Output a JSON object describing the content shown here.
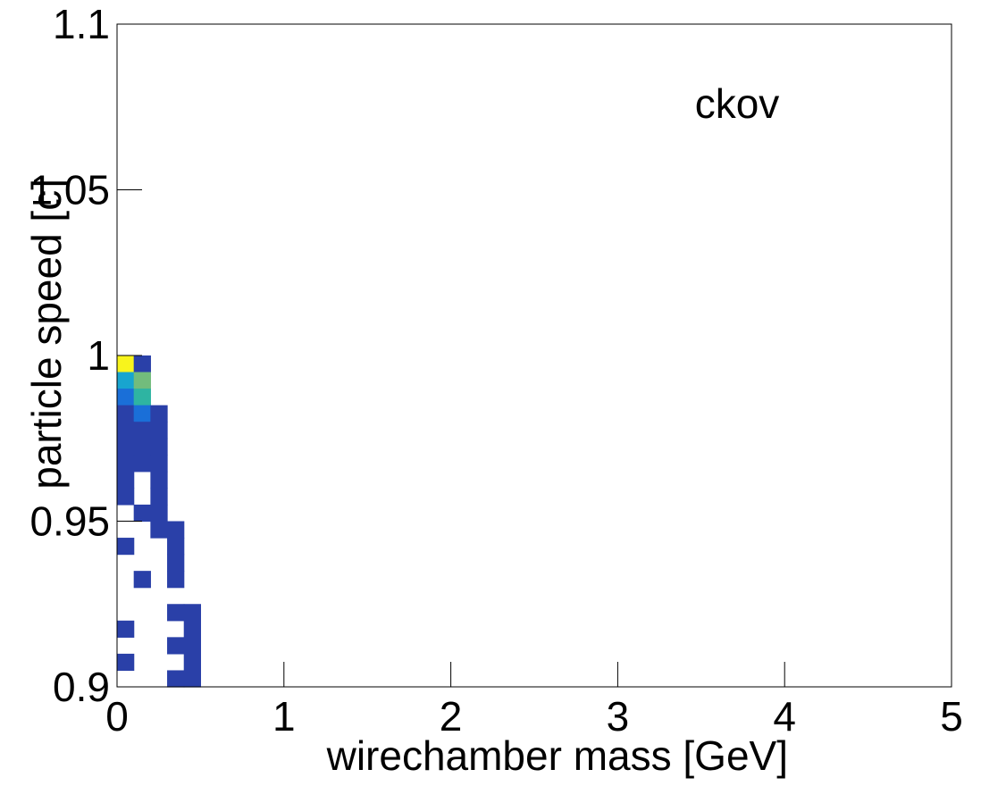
{
  "chart_data": {
    "type": "heatmap",
    "title": "ckov",
    "xlabel": "wirechamber mass [GeV]",
    "ylabel": "particle speed [c]",
    "xlim": [
      0,
      5
    ],
    "ylim": [
      0.9,
      1.1
    ],
    "x_ticks": [
      "0",
      "1",
      "2",
      "3",
      "4",
      "5"
    ],
    "y_ticks": [
      "0.9",
      "0.95",
      "1",
      "1.05",
      "1.1"
    ],
    "bin_width_x": 0.1,
    "bin_width_y": 0.005,
    "colors": {
      "low": "#2a40a8",
      "blue_mid": "#1a6fd8",
      "cyan": "#18a5cf",
      "teal": "#2eb4a2",
      "green": "#72bc7c",
      "high": "#f8f41c"
    },
    "cells": [
      {
        "x": 0.0,
        "y": 0.995,
        "level": "high"
      },
      {
        "x": 0.1,
        "y": 0.995,
        "level": "low"
      },
      {
        "x": 0.0,
        "y": 0.99,
        "level": "cyan"
      },
      {
        "x": 0.1,
        "y": 0.99,
        "level": "green"
      },
      {
        "x": 0.0,
        "y": 0.985,
        "level": "blue_mid"
      },
      {
        "x": 0.1,
        "y": 0.985,
        "level": "teal"
      },
      {
        "x": 0.0,
        "y": 0.98,
        "level": "low"
      },
      {
        "x": 0.1,
        "y": 0.98,
        "level": "blue_mid"
      },
      {
        "x": 0.2,
        "y": 0.98,
        "level": "low"
      },
      {
        "x": 0.0,
        "y": 0.975,
        "level": "low"
      },
      {
        "x": 0.1,
        "y": 0.975,
        "level": "low"
      },
      {
        "x": 0.2,
        "y": 0.975,
        "level": "low"
      },
      {
        "x": 0.0,
        "y": 0.97,
        "level": "low"
      },
      {
        "x": 0.1,
        "y": 0.97,
        "level": "low"
      },
      {
        "x": 0.2,
        "y": 0.97,
        "level": "low"
      },
      {
        "x": 0.0,
        "y": 0.965,
        "level": "low"
      },
      {
        "x": 0.1,
        "y": 0.965,
        "level": "low"
      },
      {
        "x": 0.2,
        "y": 0.965,
        "level": "low"
      },
      {
        "x": 0.0,
        "y": 0.96,
        "level": "low"
      },
      {
        "x": 0.2,
        "y": 0.96,
        "level": "low"
      },
      {
        "x": 0.0,
        "y": 0.955,
        "level": "low"
      },
      {
        "x": 0.2,
        "y": 0.955,
        "level": "low"
      },
      {
        "x": 0.1,
        "y": 0.95,
        "level": "low"
      },
      {
        "x": 0.2,
        "y": 0.95,
        "level": "low"
      },
      {
        "x": 0.2,
        "y": 0.945,
        "level": "low"
      },
      {
        "x": 0.3,
        "y": 0.945,
        "level": "low"
      },
      {
        "x": 0.0,
        "y": 0.94,
        "level": "low"
      },
      {
        "x": 0.3,
        "y": 0.94,
        "level": "low"
      },
      {
        "x": 0.3,
        "y": 0.935,
        "level": "low"
      },
      {
        "x": 0.1,
        "y": 0.93,
        "level": "low"
      },
      {
        "x": 0.3,
        "y": 0.93,
        "level": "low"
      },
      {
        "x": 0.3,
        "y": 0.92,
        "level": "low"
      },
      {
        "x": 0.4,
        "y": 0.92,
        "level": "low"
      },
      {
        "x": 0.0,
        "y": 0.915,
        "level": "low"
      },
      {
        "x": 0.4,
        "y": 0.915,
        "level": "low"
      },
      {
        "x": 0.3,
        "y": 0.91,
        "level": "low"
      },
      {
        "x": 0.4,
        "y": 0.91,
        "level": "low"
      },
      {
        "x": 0.0,
        "y": 0.905,
        "level": "low"
      },
      {
        "x": 0.4,
        "y": 0.905,
        "level": "low"
      },
      {
        "x": 0.3,
        "y": 0.9,
        "level": "low"
      },
      {
        "x": 0.4,
        "y": 0.9,
        "level": "low"
      }
    ]
  }
}
